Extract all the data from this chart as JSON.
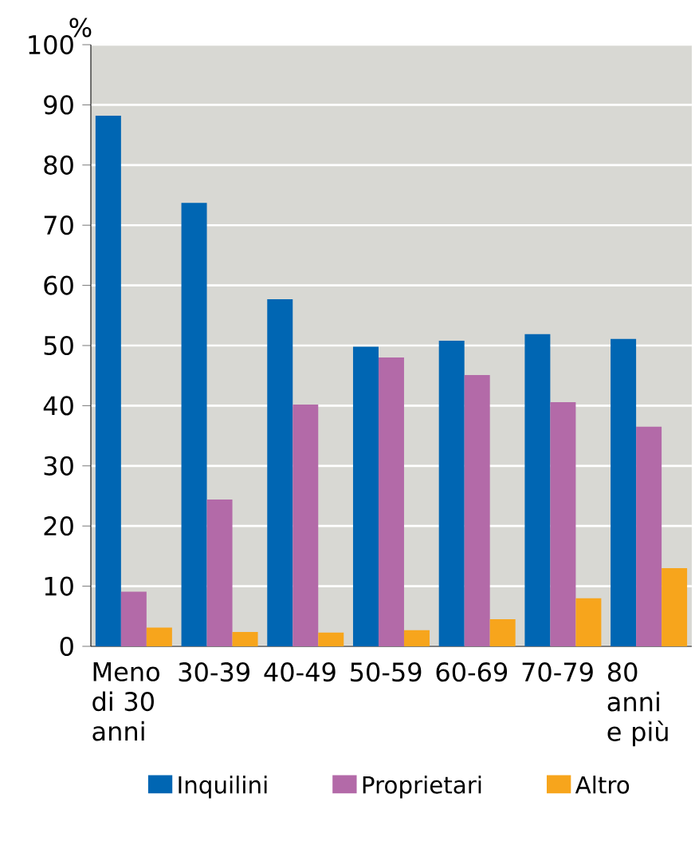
{
  "chart_data": {
    "type": "bar",
    "ylabel": "%",
    "categories": [
      "Meno di 30 anni",
      "30-39",
      "40-49",
      "50-59",
      "60-69",
      "70-79",
      "80 anni e più"
    ],
    "series": [
      {
        "name": "Inquilini",
        "color": "#0066b3",
        "values": [
          88.2,
          73.7,
          57.7,
          49.8,
          50.8,
          51.9,
          51.1
        ]
      },
      {
        "name": "Proprietari",
        "color": "#b36aa8",
        "values": [
          9.1,
          24.4,
          40.2,
          48.0,
          45.1,
          40.6,
          36.5
        ]
      },
      {
        "name": "Altro",
        "color": "#f7a51c",
        "values": [
          3.1,
          2.4,
          2.3,
          2.7,
          4.5,
          8.0,
          13.0
        ]
      }
    ],
    "ylim": [
      0,
      100
    ],
    "yticks": [
      0,
      10,
      20,
      30,
      40,
      50,
      60,
      70,
      80,
      90,
      100
    ],
    "grid": "y",
    "legend": "bottom"
  }
}
